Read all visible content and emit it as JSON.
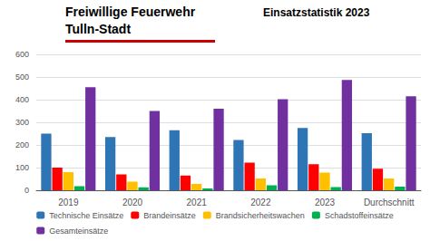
{
  "chart_data": {
    "type": "bar",
    "title": "Einsatzstatistik 2023",
    "annotations": [
      "Freiwillige Feuerwehr",
      "Tulln-Stadt"
    ],
    "categories": [
      "2019",
      "2020",
      "2021",
      "2022",
      "2023",
      "Durchschnitt"
    ],
    "series": [
      {
        "name": "Technische Einsätze",
        "color": "#2E75B6",
        "values": [
          250,
          235,
          265,
          222,
          275,
          252
        ]
      },
      {
        "name": "Brandeinsätze",
        "color": "#FF0000",
        "values": [
          100,
          70,
          65,
          122,
          115,
          95
        ]
      },
      {
        "name": "Brandsicherheitswachen",
        "color": "#FFC000",
        "values": [
          80,
          38,
          28,
          52,
          78,
          52
        ]
      },
      {
        "name": "Schadstoffeinsätze",
        "color": "#00B050",
        "values": [
          18,
          13,
          8,
          22,
          14,
          16
        ]
      },
      {
        "name": "Gesamteinsätze",
        "color": "#7030A0",
        "values": [
          455,
          350,
          360,
          402,
          487,
          415
        ]
      }
    ],
    "ylim": [
      0,
      600
    ],
    "yticks": [
      0,
      100,
      200,
      300,
      400,
      500,
      600
    ],
    "grid": true,
    "legend": "bottom"
  }
}
